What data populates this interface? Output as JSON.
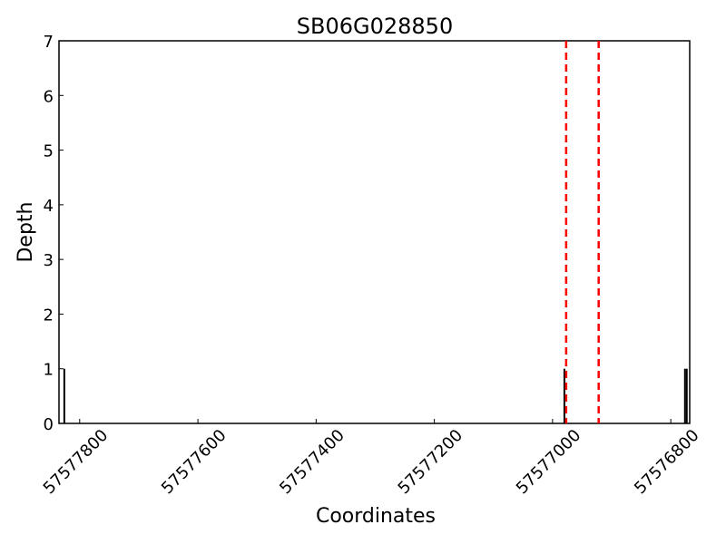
{
  "chart_data": {
    "type": "bar",
    "title": "SB06G028850",
    "x_label": "Coordinates",
    "y_label": "Depth",
    "x": [
      57577826,
      57576980,
      57576776,
      57576773
    ],
    "values": [
      1,
      1,
      1,
      1
    ],
    "color": "#000000",
    "vlines": [
      57576977,
      57576922
    ],
    "vline_color": "#ff0000",
    "xlim": [
      57577835,
      57576768
    ],
    "xticks": [
      57577800,
      57577600,
      57577400,
      57577200,
      57577000,
      57576800
    ],
    "ylim": [
      0,
      7
    ],
    "yticks": [
      0,
      1,
      2,
      3,
      4,
      5,
      6,
      7
    ]
  }
}
